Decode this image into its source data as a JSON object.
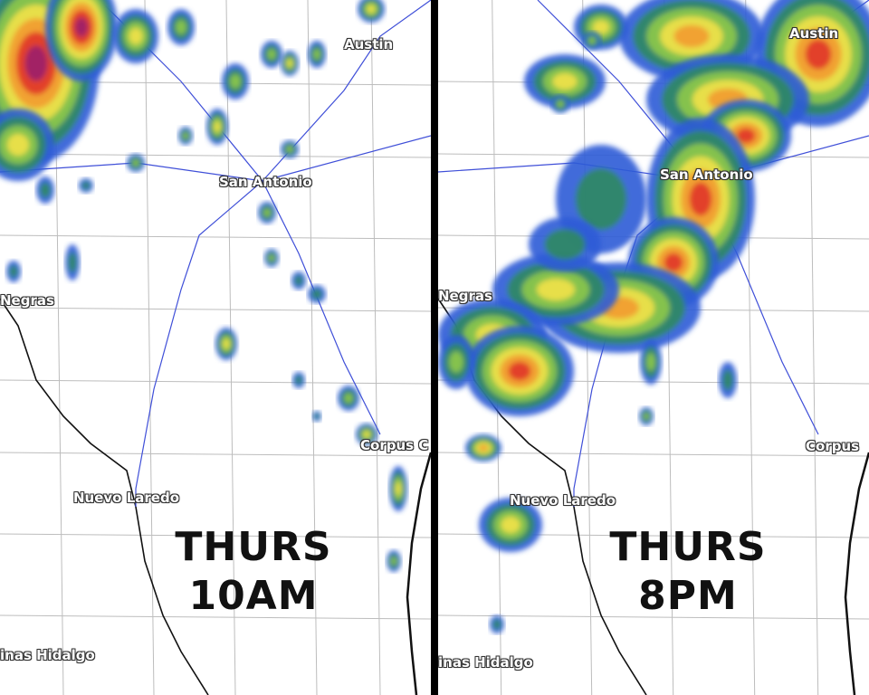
{
  "colors": {
    "divider": "#000000",
    "road": "#3f4fd8",
    "county": "#bdbdbd",
    "border": "#111111",
    "radar": [
      "#2f5bd6",
      "#2e8a62",
      "#8fc94a",
      "#f2e24a",
      "#f29b2e",
      "#e0342a",
      "#9b1d6b"
    ]
  },
  "panels": [
    {
      "time_label_day": "THURS",
      "time_label_time": "10AM",
      "cities": {
        "austin": "Austin",
        "san_antonio": "San Antonio",
        "negras": "Negras",
        "nuevo_laredo": "Nuevo Laredo",
        "corpus": "Corpus C",
        "hidalgo": "inas Hidalgo"
      }
    },
    {
      "time_label_day": "THURS",
      "time_label_time": "8PM",
      "cities": {
        "austin": "Austin",
        "san_antonio": "San Antonio",
        "negras": "Negras",
        "nuevo_laredo": "Nuevo Laredo",
        "corpus": "Corpus",
        "hidalgo": "inas Hidalgo"
      }
    }
  ]
}
